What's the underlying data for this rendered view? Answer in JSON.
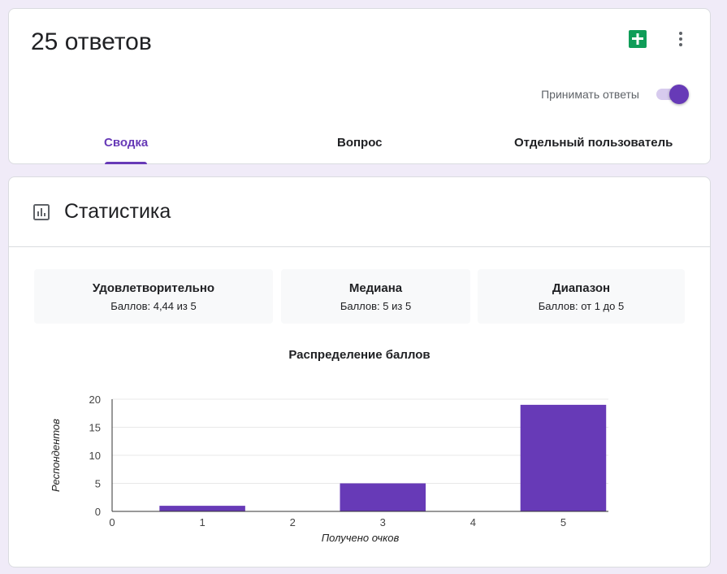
{
  "header": {
    "responses_title": "25 ответов",
    "accept_responses_label": "Принимать ответы",
    "accept_responses_on": true,
    "icons": [
      "google-sheets-icon",
      "more-vert-icon"
    ]
  },
  "tabs": [
    {
      "label": "Сводка",
      "active": true
    },
    {
      "label": "Вопрос",
      "active": false
    },
    {
      "label": "Отдельный пользователь",
      "active": false
    }
  ],
  "stats": {
    "title": "Статистика",
    "icon": "bar-chart-icon",
    "boxes": [
      {
        "name": "Удовлетворительно",
        "value": "Баллов: 4,44 из 5"
      },
      {
        "name": "Медиана",
        "value": "Баллов: 5 из 5"
      },
      {
        "name": "Диапазон",
        "value": "Баллов: от 1 до 5"
      }
    ]
  },
  "chart_data": {
    "type": "bar",
    "title": "Распределение баллов",
    "xlabel": "Получено очков",
    "ylabel": "Респондентов",
    "x": [
      1,
      3,
      5
    ],
    "values": [
      1,
      5,
      19
    ],
    "x_ticks": [
      "0",
      "1",
      "2",
      "3",
      "4",
      "5"
    ],
    "y_ticks": [
      "0",
      "5",
      "10",
      "15",
      "20"
    ],
    "xlim": [
      0,
      5.5
    ],
    "ylim": [
      0,
      20
    ],
    "grid": true,
    "bar_color": "#673ab7"
  },
  "colors": {
    "accent": "#673ab7",
    "background": "#f0ebf8",
    "sheets_green": "#0f9d58"
  }
}
